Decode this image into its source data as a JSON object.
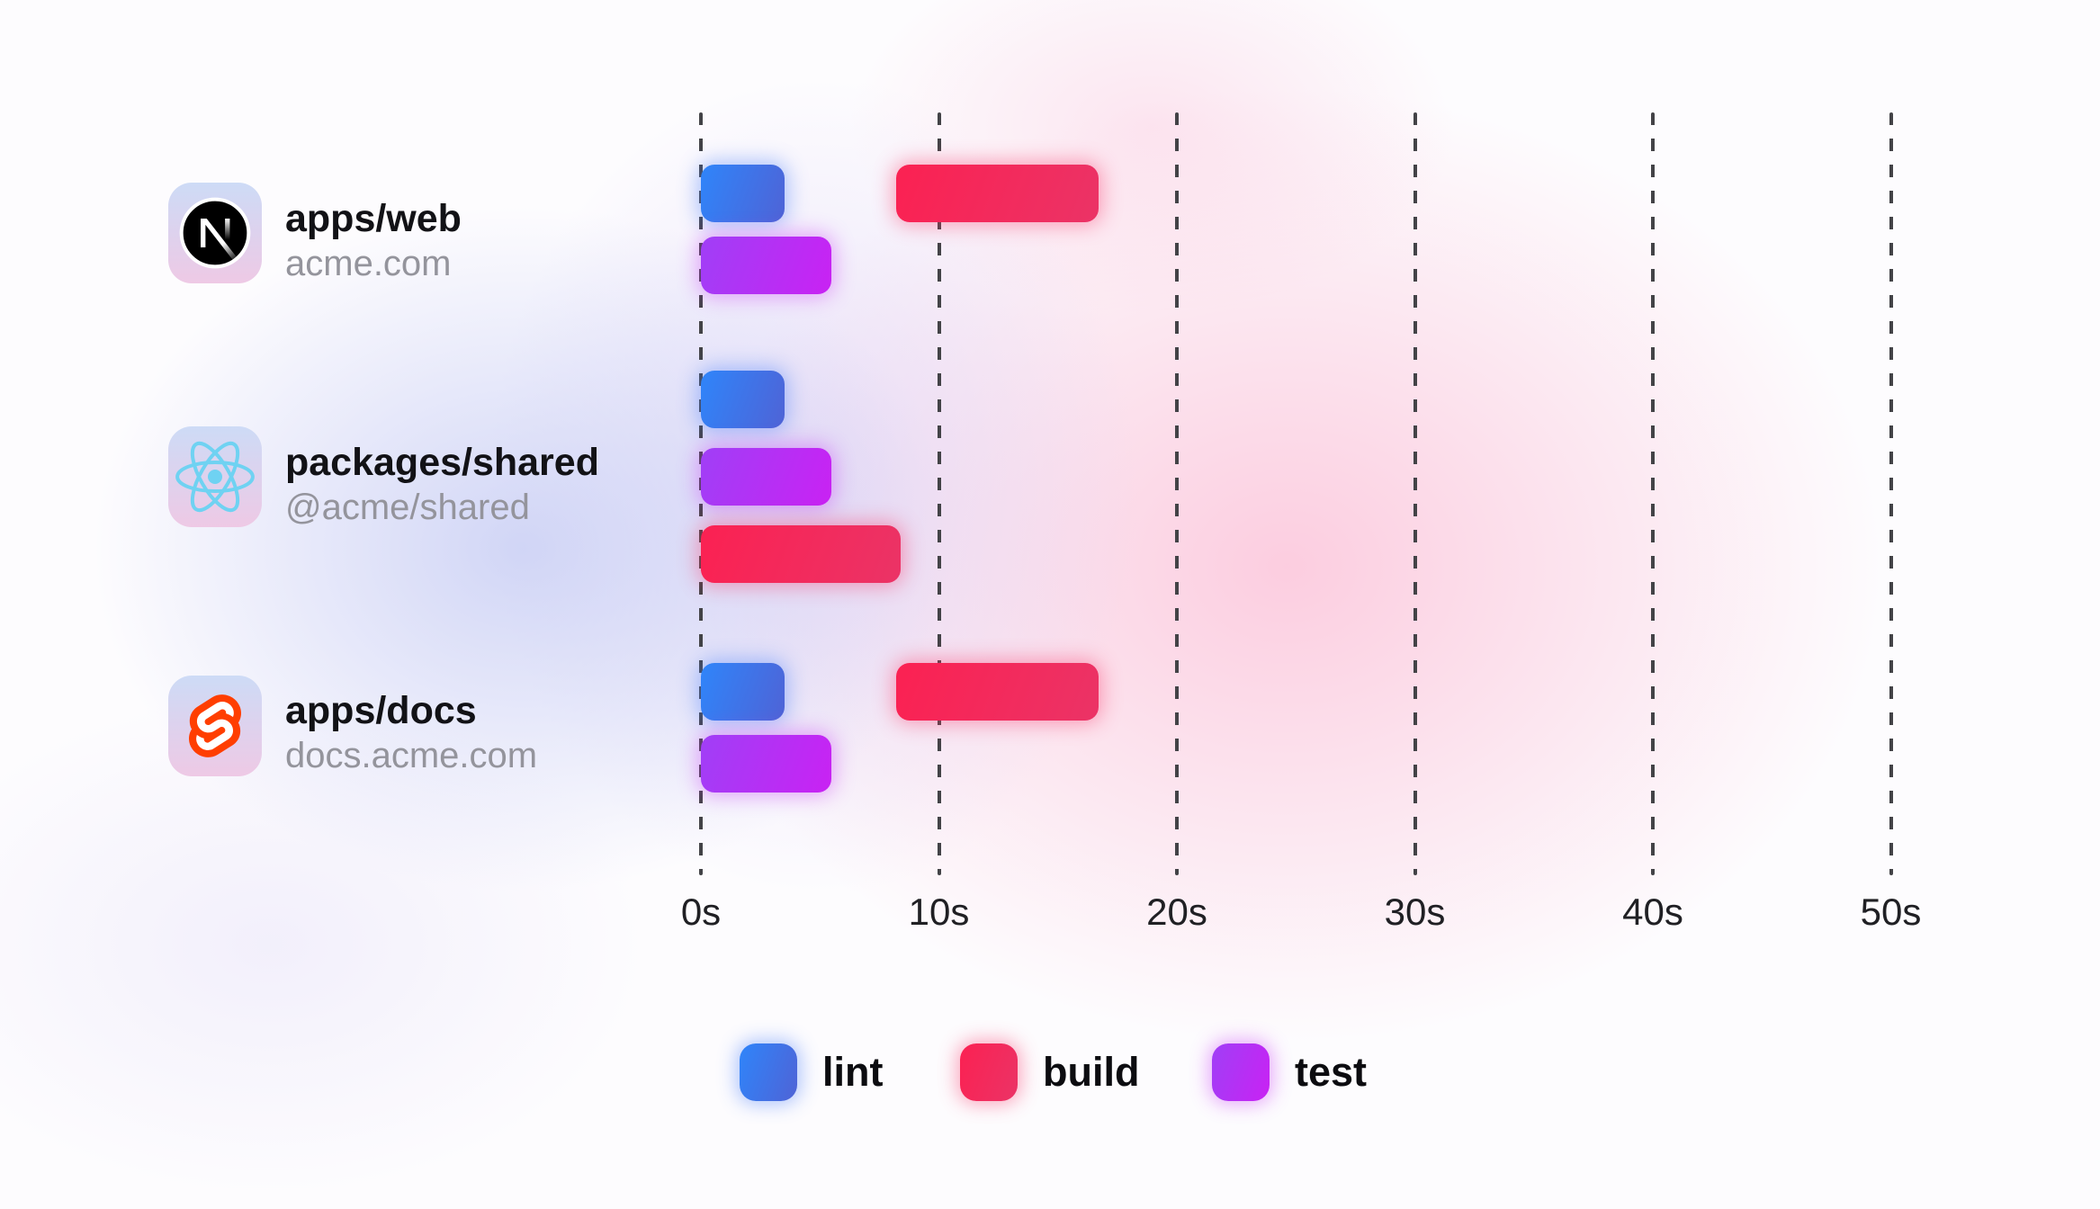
{
  "chart_data": {
    "type": "gantt",
    "x_axis": {
      "ticks": [
        "0s",
        "10s",
        "20s",
        "30s",
        "40s",
        "50s"
      ],
      "range_seconds": [
        0,
        50
      ],
      "unit": "seconds",
      "grid": "dashed-vertical"
    },
    "legend": {
      "position": "bottom",
      "items": [
        {
          "task": "lint",
          "label": "lint"
        },
        {
          "task": "build",
          "label": "build"
        },
        {
          "task": "test",
          "label": "test"
        }
      ]
    },
    "colors": {
      "lint": {
        "from": "#2F85FA",
        "to": "#4F63D6",
        "glow": "rgba(80,130,250,0.45)"
      },
      "build": {
        "from": "#FB2152",
        "to": "#EB3366",
        "glow": "rgba(250,55,105,0.42)"
      },
      "test": {
        "from": "#A03FF6",
        "to": "#C922F3",
        "glow": "rgba(200,60,245,0.42)"
      },
      "icon_card_top": "#CDDBF6",
      "icon_card_bottom": "#EEC9E5",
      "nextjs_black": "#000000",
      "react_cyan": "#6FD2F2",
      "svelte_orange": "#FF3E00"
    },
    "rows": [
      {
        "package": "apps/web",
        "domain": "acme.com",
        "icon": "nextjs-logo-icon",
        "lanes": [
          [
            {
              "task": "lint",
              "start_s": 0,
              "end_s": 3.5
            },
            {
              "task": "build",
              "start_s": 8.2,
              "end_s": 16.7
            }
          ],
          [
            {
              "task": "test",
              "start_s": 0,
              "end_s": 5.5
            }
          ]
        ]
      },
      {
        "package": "packages/shared",
        "domain": "@acme/shared",
        "icon": "react-logo-icon",
        "lanes": [
          [
            {
              "task": "lint",
              "start_s": 0,
              "end_s": 3.5
            }
          ],
          [
            {
              "task": "test",
              "start_s": 0,
              "end_s": 5.5
            }
          ],
          [
            {
              "task": "build",
              "start_s": 0,
              "end_s": 8.4
            }
          ]
        ]
      },
      {
        "package": "apps/docs",
        "domain": "docs.acme.com",
        "icon": "svelte-logo-icon",
        "lanes": [
          [
            {
              "task": "lint",
              "start_s": 0,
              "end_s": 3.5
            },
            {
              "task": "build",
              "start_s": 8.2,
              "end_s": 16.7
            }
          ],
          [
            {
              "task": "test",
              "start_s": 0,
              "end_s": 5.5
            }
          ]
        ]
      }
    ]
  }
}
